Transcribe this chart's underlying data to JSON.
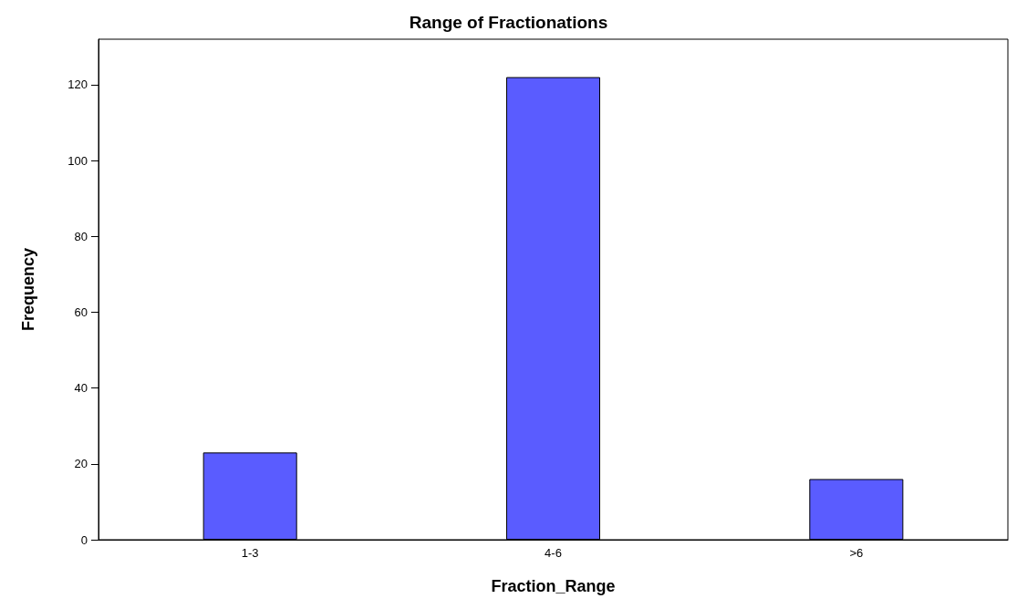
{
  "chart_data": {
    "type": "bar",
    "title": "Range of Fractionations",
    "xlabel": "Fraction_Range",
    "ylabel": "Frequency",
    "categories": [
      "1-3",
      "4-6",
      ">6"
    ],
    "values": [
      23,
      122,
      16
    ],
    "color": "#5a5cff",
    "ylim": [
      0,
      132
    ],
    "yticks": [
      0,
      20,
      40,
      60,
      80,
      100,
      120
    ],
    "grid": false
  }
}
